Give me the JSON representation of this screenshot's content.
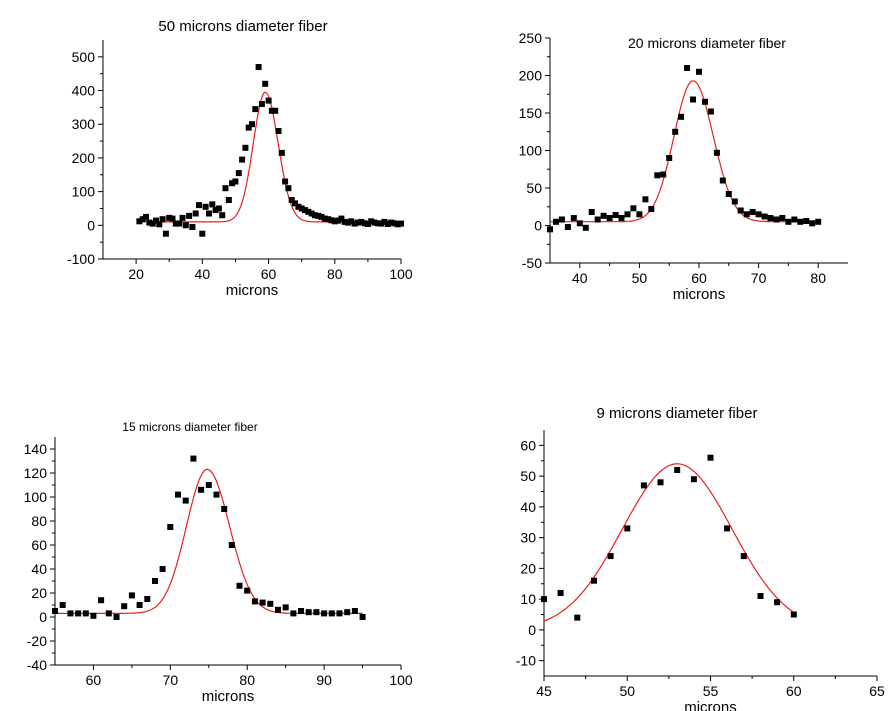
{
  "chart_data": [
    {
      "type": "scatter",
      "title": "50 microns diameter fiber",
      "xlabel": "microns",
      "ylabel": "",
      "xlim": [
        10,
        100
      ],
      "ylim": [
        -100,
        550
      ],
      "xticks": [
        20,
        40,
        60,
        80,
        100
      ],
      "yticks": [
        -100,
        0,
        100,
        200,
        300,
        400,
        500
      ],
      "grid": false,
      "series": [
        {
          "kind": "points",
          "color": "#000000",
          "x": [
            21,
            22,
            23,
            24,
            25,
            26,
            27,
            28,
            29,
            30,
            31,
            32,
            33,
            34,
            35,
            36,
            37,
            38,
            39,
            40,
            41,
            42,
            43,
            44,
            45,
            46,
            47,
            48,
            49,
            50,
            51,
            52,
            53,
            54,
            55,
            56,
            57,
            58,
            59,
            60,
            61,
            62,
            63,
            64,
            65,
            66,
            67,
            68,
            69,
            70,
            71,
            72,
            73,
            74,
            75,
            76,
            77,
            78,
            79,
            80,
            81,
            82,
            83,
            84,
            85,
            86,
            87,
            88,
            89,
            90,
            91,
            92,
            93,
            94,
            95,
            96,
            97,
            98,
            99,
            100
          ],
          "y": [
            12,
            18,
            25,
            8,
            5,
            14,
            3,
            18,
            -25,
            22,
            20,
            5,
            5,
            22,
            0,
            28,
            -5,
            35,
            60,
            -25,
            55,
            35,
            62,
            45,
            50,
            30,
            110,
            75,
            125,
            130,
            155,
            195,
            230,
            290,
            300,
            345,
            470,
            360,
            420,
            370,
            340,
            340,
            280,
            215,
            130,
            110,
            75,
            65,
            55,
            50,
            45,
            40,
            35,
            30,
            28,
            25,
            20,
            18,
            15,
            12,
            14,
            20,
            10,
            8,
            12,
            5,
            8,
            10,
            6,
            4,
            12,
            8,
            6,
            5,
            10,
            4,
            8,
            6,
            3,
            5
          ]
        },
        {
          "kind": "fit",
          "color": "#e8201c",
          "peak_x": 59,
          "peak_y": 395,
          "baseline": 10
        }
      ]
    },
    {
      "type": "scatter",
      "title": "20 microns diameter fiber",
      "xlabel": "microns",
      "ylabel": "",
      "xlim": [
        35,
        85
      ],
      "ylim": [
        -50,
        250
      ],
      "xticks": [
        40,
        50,
        60,
        70,
        80
      ],
      "yticks": [
        -50,
        0,
        50,
        100,
        150,
        200,
        250
      ],
      "grid": false,
      "series": [
        {
          "kind": "points",
          "color": "#000000",
          "x": [
            35,
            36,
            37,
            38,
            39,
            40,
            41,
            42,
            43,
            44,
            45,
            46,
            47,
            48,
            49,
            50,
            51,
            52,
            53,
            54,
            55,
            56,
            57,
            58,
            59,
            60,
            61,
            62,
            63,
            64,
            65,
            66,
            67,
            68,
            69,
            70,
            71,
            72,
            73,
            74,
            75,
            76,
            77,
            78,
            79,
            80
          ],
          "y": [
            -5,
            5,
            8,
            -2,
            10,
            3,
            -3,
            18,
            8,
            13,
            10,
            14,
            10,
            15,
            23,
            15,
            35,
            22,
            67,
            68,
            90,
            125,
            145,
            210,
            168,
            205,
            165,
            152,
            97,
            60,
            42,
            32,
            20,
            15,
            18,
            15,
            12,
            10,
            8,
            10,
            5,
            8,
            5,
            6,
            3,
            5
          ]
        },
        {
          "kind": "fit",
          "color": "#e8201c",
          "peak_x": 59,
          "peak_y": 193,
          "baseline": 5
        }
      ]
    },
    {
      "type": "scatter",
      "title": "15 microns diameter fiber",
      "xlabel": "microns",
      "ylabel": "",
      "xlim": [
        55,
        100
      ],
      "ylim": [
        -40,
        150
      ],
      "xticks": [
        60,
        70,
        80,
        90,
        100
      ],
      "yticks": [
        -40,
        -20,
        0,
        20,
        40,
        60,
        80,
        100,
        120,
        140
      ],
      "grid": false,
      "series": [
        {
          "kind": "points",
          "color": "#000000",
          "x": [
            55,
            56,
            57,
            58,
            59,
            60,
            61,
            62,
            63,
            64,
            65,
            66,
            67,
            68,
            69,
            70,
            71,
            72,
            73,
            74,
            75,
            76,
            77,
            78,
            79,
            80,
            81,
            82,
            83,
            84,
            85,
            86,
            87,
            88,
            89,
            90,
            91,
            92,
            93,
            94,
            95
          ],
          "y": [
            5,
            10,
            3,
            3,
            3,
            1,
            14,
            3,
            0,
            9,
            18,
            10,
            15,
            30,
            40,
            75,
            102,
            97,
            132,
            106,
            110,
            102,
            90,
            60,
            26,
            22,
            13,
            12,
            11,
            6,
            8,
            3,
            5,
            4,
            4,
            3,
            3,
            3,
            4,
            5,
            0
          ]
        },
        {
          "kind": "fit",
          "color": "#e8201c",
          "peak_x": 74.8,
          "peak_y": 123,
          "baseline": 3
        }
      ]
    },
    {
      "type": "scatter",
      "title": "9 microns diameter fiber",
      "xlabel": "microns",
      "ylabel": "",
      "xlim": [
        45,
        65
      ],
      "ylim": [
        -15,
        65
      ],
      "xticks": [
        45,
        50,
        55,
        60,
        65
      ],
      "yticks": [
        -10,
        0,
        10,
        20,
        30,
        40,
        50,
        60
      ],
      "grid": false,
      "series": [
        {
          "kind": "points",
          "color": "#000000",
          "x": [
            45,
            46,
            47,
            48,
            49,
            50,
            51,
            52,
            53,
            54,
            55,
            56,
            57,
            58,
            59,
            60
          ],
          "y": [
            10,
            12,
            4,
            16,
            24,
            33,
            47,
            48,
            52,
            49,
            56,
            33,
            24,
            11,
            9,
            5
          ]
        },
        {
          "kind": "fit",
          "color": "#e8201c",
          "peak_x": 53,
          "peak_y": 54,
          "baseline": 0
        }
      ]
    }
  ]
}
